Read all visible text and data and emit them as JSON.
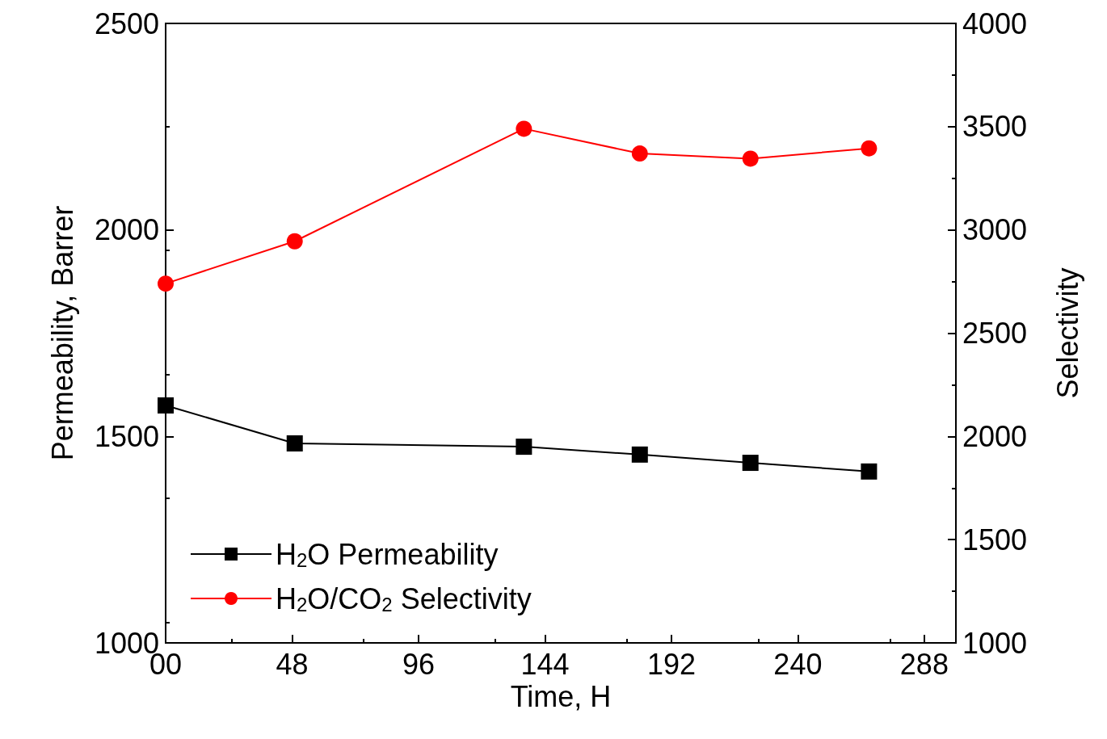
{
  "chart_data": {
    "type": "line",
    "xlabel": "Time, H",
    "ylabel": "Permeability, Barrer",
    "y2label": "Selectivity",
    "x": [
      0,
      49,
      136,
      180,
      222,
      267
    ],
    "series": [
      {
        "name": "H$_{2}$O Permeability",
        "color": "#000000",
        "marker": "square",
        "values": [
          1575,
          1483,
          1475,
          1456,
          1436,
          1415
        ]
      },
      {
        "name": "H$_{2}$O/CO$_{2}$ Selectivity",
        "color": "#ff0000",
        "marker": "circle",
        "axis": "y2",
        "values": [
          2740,
          2945,
          3490,
          3370,
          3345,
          3395
        ]
      }
    ],
    "xlim": [
      0,
      300
    ],
    "xticks": [
      {
        "value": 0,
        "label": "00"
      },
      48,
      96,
      144,
      192,
      240,
      288
    ],
    "ylim": [
      1000,
      2500
    ],
    "yticks": [
      1000,
      1500,
      2000,
      2500
    ],
    "y2lim": [
      1000,
      4000
    ],
    "y2ticks": [
      1000,
      1500,
      2000,
      2500,
      3000,
      3500,
      4000
    ],
    "grid": false,
    "legend": "bottom left",
    "line_style": "solid"
  }
}
